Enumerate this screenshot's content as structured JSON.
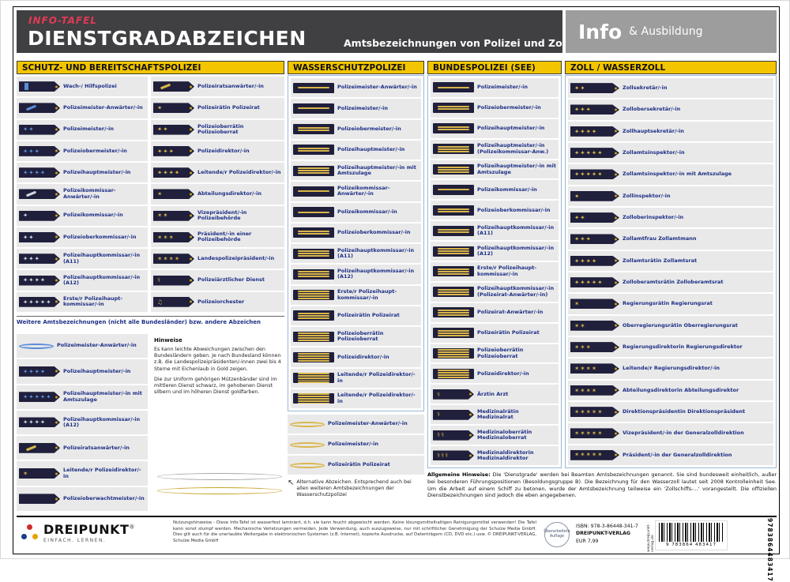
{
  "header": {
    "kicker": "INFO-TAFEL",
    "title": "DIENSTGRADABZEICHEN",
    "subtitle": "Amtsbezeichnungen von Polizei und Zoll",
    "badge_main": "Info",
    "badge_sub": "& Ausbildung"
  },
  "colors": {
    "accent_yellow": "#f2c500",
    "header_dark": "#404043",
    "badge_gray": "#9d9d9d",
    "kicker_red": "#e23a55",
    "label_blue": "#1d2f86",
    "epaulette_navy": "#20203c",
    "pip_gold": "#d9b64a",
    "pip_silver": "#cfd6e2",
    "pip_blue": "#5b8dd9"
  },
  "sections": {
    "schutzpolizei": {
      "title": "SCHUTZ- UND BEREITSCHAFTSPOLIZEI",
      "rows_left": [
        {
          "label": "Wach-/ Hilfs­polizei",
          "ins": {
            "k": "bar",
            "c": "blue"
          }
        },
        {
          "label": "Polizeimeister-Anwärter/-in",
          "ins": {
            "k": "stripe",
            "c": "blue"
          }
        },
        {
          "label": "Polizeimeister/-in",
          "ins": {
            "k": "star",
            "n": 2,
            "c": "blue"
          }
        },
        {
          "label": "Polizeiober­meister/-in",
          "ins": {
            "k": "star",
            "n": 3,
            "c": "blue"
          }
        },
        {
          "label": "Polizeihaupt­meister/-in",
          "ins": {
            "k": "star",
            "n": 4,
            "c": "blue"
          }
        },
        {
          "label": "Polizeikommissar-Anwärter/-in",
          "ins": {
            "k": "stripe",
            "c": "silver"
          }
        },
        {
          "label": "Polizei­kommissar/-in",
          "ins": {
            "k": "star",
            "n": 1,
            "c": "silver"
          }
        },
        {
          "label": "Polizeioberkom­missar/-in",
          "ins": {
            "k": "star",
            "n": 2,
            "c": "silver"
          }
        },
        {
          "label": "Polizeihauptkom­missar/-in (A11)",
          "ins": {
            "k": "star",
            "n": 3,
            "c": "silver"
          }
        },
        {
          "label": "Polizeihauptkom­missar/-in (A12)",
          "ins": {
            "k": "star",
            "n": 4,
            "c": "silver"
          }
        },
        {
          "label": "Erste/r Polizeihaupt­kommissar/-in",
          "ins": {
            "k": "star",
            "n": 5,
            "c": "silver"
          }
        }
      ],
      "rows_right": [
        {
          "label": "Polizeirats­anwärter/-in",
          "ins": {
            "k": "stripe",
            "c": "gold"
          }
        },
        {
          "label": "Polizeirätin Polizeirat",
          "ins": {
            "k": "star",
            "n": 1,
            "c": "gold"
          }
        },
        {
          "label": "Polizeioberrätin Polizeioberrat",
          "ins": {
            "k": "star",
            "n": 2,
            "c": "gold"
          }
        },
        {
          "label": "Polizei­direktor/-in",
          "ins": {
            "k": "star",
            "n": 3,
            "c": "gold"
          }
        },
        {
          "label": "Leitende/r Polizei­direktor/-in",
          "ins": {
            "k": "star",
            "n": 4,
            "c": "gold"
          }
        },
        {
          "label": "Abteilungs­direktor/-in",
          "ins": {
            "k": "oak",
            "n": 1,
            "c": "gold"
          }
        },
        {
          "label": "Vizepräsident/-in Polizeibehörde",
          "ins": {
            "k": "oak",
            "n": 2,
            "c": "gold"
          }
        },
        {
          "label": "Präsident/-in einer Polizeibehörde",
          "ins": {
            "k": "oak",
            "n": 3,
            "c": "gold"
          }
        },
        {
          "label": "Landespolizei­präsident/-in",
          "ins": {
            "k": "oak",
            "n": 4,
            "c": "gold"
          }
        },
        {
          "label": "Polizeiärztlicher Dienst",
          "ins": {
            "k": "med",
            "n": 1,
            "c": "gold"
          }
        },
        {
          "label": "Polizeiorchester",
          "ins": {
            "k": "lyre",
            "n": 1,
            "c": "gold"
          }
        }
      ],
      "divider_note": "Weitere Amtsbezeichnungen (nicht alle Bundesländer) bzw. andere Abzeichen",
      "rows_extra": [
        {
          "label": "Polizeimeister-Anwärter/-in",
          "ins": {
            "k": "cord",
            "c": "blue"
          }
        },
        {
          "label": "Polizeihaupt­meister/-in",
          "ins": {
            "k": "star",
            "n": 4,
            "c": "blue"
          }
        },
        {
          "label": "Polizeihauptmeister/-in mit Amtszulage",
          "ins": {
            "k": "star",
            "n": 5,
            "c": "blue"
          }
        },
        {
          "label": "Polizeihauptkom­missar/-in (A12)",
          "ins": {
            "k": "star",
            "n": 4,
            "c": "silver"
          }
        },
        {
          "label": "Polizeirats­anwärter/-in",
          "ins": {
            "k": "stripe",
            "c": "gold"
          }
        },
        {
          "label": "Leitende/r Polizei­direktor/-in",
          "ins": {
            "k": "oak",
            "n": 1,
            "c": "gold"
          }
        },
        {
          "label": "Polizeiober­wachtmeister/-in",
          "ins": {
            "k": "plain",
            "c": "blue"
          }
        }
      ],
      "hints_title": "Hinweise",
      "hints": [
        "Es kann leichte Abweichungen zwischen den Bundesländern geben. Je nach Bundesland können z.B. die Landespolizeipräsidenten/-innen zwei bis 4 Sterne mit Eichenlaub in Gold zeigen.",
        "Die zur Uniform gehörigen Mützenbänder sind im mittleren Dienst schwarz, im gehobenen Dienst silbern und im höheren Dienst goldfarben."
      ]
    },
    "wasserschutz": {
      "title": "WASSERSCHUTZPOLIZEI",
      "rows": [
        {
          "label": "Polizeimeister-Anwärter/-in",
          "ins": {
            "k": "stripes",
            "n": 1,
            "c": "gold"
          }
        },
        {
          "label": "Polizeimeister/-in",
          "ins": {
            "k": "stripes",
            "n": 1,
            "c": "gold"
          }
        },
        {
          "label": "Polizeiober­meister/-in",
          "ins": {
            "k": "stripes",
            "n": 2,
            "c": "gold"
          }
        },
        {
          "label": "Polizeihaupt­meister/-in",
          "ins": {
            "k": "stripes",
            "n": 2,
            "c": "gold"
          }
        },
        {
          "label": "Polizeihauptmeister/-in mit Amtszulage",
          "ins": {
            "k": "stripes",
            "n": 3,
            "c": "gold"
          }
        },
        {
          "label": "Polizeikommissar-Anwärter/-in",
          "ins": {
            "k": "stripes",
            "n": 1,
            "c": "gold"
          }
        },
        {
          "label": "Polizeikom­missar/-in",
          "ins": {
            "k": "stripes",
            "n": 1,
            "c": "gold"
          }
        },
        {
          "label": "Polizeiober­kommissar/-in",
          "ins": {
            "k": "stripes",
            "n": 2,
            "c": "gold"
          }
        },
        {
          "label": "Polizeihauptkom­missar/-in (A11)",
          "ins": {
            "k": "stripes",
            "n": 3,
            "c": "gold"
          }
        },
        {
          "label": "Polizeihauptkom­missar/-in (A12)",
          "ins": {
            "k": "stripes",
            "n": 3,
            "c": "gold"
          }
        },
        {
          "label": "Erste/r Polizeihaupt­kommissar/-in",
          "ins": {
            "k": "stripes",
            "n": 4,
            "c": "gold"
          }
        },
        {
          "label": "Polizeirätin Polizeirat",
          "ins": {
            "k": "stripes",
            "n": 3,
            "c": "gold"
          }
        },
        {
          "label": "Polizeioberrätin Polizeioberrat",
          "ins": {
            "k": "stripes",
            "n": 4,
            "c": "gold"
          }
        },
        {
          "label": "Polizeidirektor/-in",
          "ins": {
            "k": "stripes",
            "n": 4,
            "c": "gold"
          }
        },
        {
          "label": "Leitende/r Polizei­direktor/-in",
          "ins": {
            "k": "stripes",
            "n": 5,
            "c": "gold"
          }
        },
        {
          "label": "Leitende/r Polizei­direktor/-in",
          "ins": {
            "k": "stripes",
            "n": 5,
            "c": "gold"
          }
        }
      ],
      "rows_alt": [
        {
          "label": "Polizeimeister-Anwärter/-in",
          "ins": {
            "k": "cord",
            "c": "gold"
          }
        },
        {
          "label": "Polizeimeister/-in",
          "ins": {
            "k": "cord",
            "c": "gold"
          }
        },
        {
          "label": "Polizeirätin Polizeirat",
          "ins": {
            "k": "cord",
            "c": "gold"
          }
        }
      ],
      "alt_note": "Alternative Abzeichen. Entsprechend auch bei allen weiteren Amtsbezeichnungen der Wasserschutzpolizei"
    },
    "bundespolizei": {
      "title": "BUNDESPOLIZEI (SEE)",
      "rows": [
        {
          "label": "Polizeimeister/-in",
          "ins": {
            "k": "stripes",
            "n": 1,
            "c": "gold"
          }
        },
        {
          "label": "Polizeiober­meister/-in",
          "ins": {
            "k": "stripes",
            "n": 2,
            "c": "gold"
          }
        },
        {
          "label": "Polizeihaupt­meister/-in",
          "ins": {
            "k": "stripes",
            "n": 2,
            "c": "gold"
          }
        },
        {
          "label": "Polizeihauptmeister/-in (Polizeikommissar-Anw.)",
          "ins": {
            "k": "stripes",
            "n": 3,
            "c": "gold"
          }
        },
        {
          "label": "Polizeihauptmeister/-in mit Amtszulage",
          "ins": {
            "k": "stripes",
            "n": 3,
            "c": "gold"
          }
        },
        {
          "label": "Polizeikom­missar/-in",
          "ins": {
            "k": "stripes",
            "n": 1,
            "c": "gold"
          }
        },
        {
          "label": "Polizeiober­kommissar/-in",
          "ins": {
            "k": "stripes",
            "n": 2,
            "c": "gold"
          }
        },
        {
          "label": "Polizeihauptkom­missar/-in (A11)",
          "ins": {
            "k": "stripes",
            "n": 2,
            "c": "gold"
          }
        },
        {
          "label": "Polizeihauptkom­missar/-in (A12)",
          "ins": {
            "k": "stripes",
            "n": 3,
            "c": "gold"
          }
        },
        {
          "label": "Erste/r Polizeihaupt­kommissar/-in",
          "ins": {
            "k": "stripes",
            "n": 3,
            "c": "gold"
          }
        },
        {
          "label": "Polizeihauptkom­missar/-in (Polizeirat-Anwärter/-in)",
          "ins": {
            "k": "stripes",
            "n": 3,
            "c": "gold"
          }
        },
        {
          "label": "Polizeirat-Anwärter/-in",
          "ins": {
            "k": "stripes",
            "n": 3,
            "c": "gold"
          }
        },
        {
          "label": "Polizeirätin Polizeirat",
          "ins": {
            "k": "stripes",
            "n": 3,
            "c": "gold"
          }
        },
        {
          "label": "Polizeioberrätin Polizeioberrat",
          "ins": {
            "k": "stripes",
            "n": 4,
            "c": "gold"
          }
        },
        {
          "label": "Polizeidirektor/-in",
          "ins": {
            "k": "stripes",
            "n": 4,
            "c": "gold"
          }
        },
        {
          "label": "Ärztin Arzt",
          "ins": {
            "k": "med",
            "n": 1,
            "c": "gold"
          }
        },
        {
          "label": "Medizinalrätin Medizinalrat",
          "ins": {
            "k": "med",
            "n": 1,
            "c": "gold"
          }
        },
        {
          "label": "Medizinaloberrätin Medizinaloberrat",
          "ins": {
            "k": "med",
            "n": 2,
            "c": "gold"
          }
        },
        {
          "label": "Medizinaldirektorin Medizinaldirektor",
          "ins": {
            "k": "med",
            "n": 3,
            "c": "gold"
          }
        }
      ]
    },
    "zoll": {
      "title": "ZOLL / WASSERZOLL",
      "rows": [
        {
          "label": "Zollsekretär/-in",
          "ins": {
            "k": "star",
            "n": 2,
            "c": "gold"
          }
        },
        {
          "label": "Zollobersekretär/-in",
          "ins": {
            "k": "star",
            "n": 3,
            "c": "gold"
          }
        },
        {
          "label": "Zollhauptsekretär/-in",
          "ins": {
            "k": "star",
            "n": 4,
            "c": "gold"
          }
        },
        {
          "label": "Zollamtsinspektor/-in",
          "ins": {
            "k": "star",
            "n": 5,
            "c": "gold"
          }
        },
        {
          "label": "Zollamtsinspektor/-in mit Amtszulage",
          "ins": {
            "k": "star",
            "n": 5,
            "c": "gold"
          }
        },
        {
          "label": "Zollinspektor/-in",
          "ins": {
            "k": "star",
            "n": 1,
            "c": "gold"
          }
        },
        {
          "label": "Zolloberinspektor/-in",
          "ins": {
            "k": "star",
            "n": 2,
            "c": "gold"
          }
        },
        {
          "label": "Zollamtfrau Zollamtmann",
          "ins": {
            "k": "star",
            "n": 3,
            "c": "gold"
          }
        },
        {
          "label": "Zollamtsrätin Zollamtsrat",
          "ins": {
            "k": "star",
            "n": 4,
            "c": "gold"
          }
        },
        {
          "label": "Zolloberamtsrätin Zolloberamtsrat",
          "ins": {
            "k": "star",
            "n": 5,
            "c": "gold"
          }
        },
        {
          "label": "Regierungsrätin Regierungsrat",
          "ins": {
            "k": "oak",
            "n": 1,
            "c": "gold"
          }
        },
        {
          "label": "Oberregierungsrätin Oberregierungsrat",
          "ins": {
            "k": "oak",
            "n": 2,
            "c": "gold"
          }
        },
        {
          "label": "Regierungsdirektorin Regierungsdirektor",
          "ins": {
            "k": "oak",
            "n": 3,
            "c": "gold"
          }
        },
        {
          "label": "Leitende/r Regierungs­direktor/-in",
          "ins": {
            "k": "oak",
            "n": 4,
            "c": "gold"
          }
        },
        {
          "label": "Abteilungsdirektorin Abteilungsdirektor",
          "ins": {
            "k": "oak",
            "n": 4,
            "c": "gold"
          }
        },
        {
          "label": "Direktionspräsidentin Direktionspräsident",
          "ins": {
            "k": "oak",
            "n": 5,
            "c": "gold"
          }
        },
        {
          "label": "Vizepräsident/-in der Generalzolldirektion",
          "ins": {
            "k": "oak",
            "n": 5,
            "c": "gold"
          }
        },
        {
          "label": "Präsident/-in der Generalzolldirektion",
          "ins": {
            "k": "oak",
            "n": 5,
            "c": "gold"
          }
        }
      ]
    }
  },
  "general_note": {
    "title": "Allgemeine Hinweise:",
    "text": "Die 'Dienstgrade' werden bei Beamten Amtsbezeichnungen genannt. Sie sind bundesweit einheitlich, außer bei besonderen Führungspositionen (Besoldungsgruppe B). Die Bezeichnung für den Wasserzoll lautet seit 2008 Kontrolleinheit See. Um die Arbeit auf einem Schiff zu betonen, wurde der Amtsbezeichnung teilweise ein 'Zollschiffs-...' vorangestellt. Die offiziellen Dienstbezeichnungen sind jedoch die eben angegebenen."
  },
  "footer": {
    "brand": "DREIPUNKT",
    "brand_reg": "®",
    "brand_tagline": "EINFACH. LERNEN.",
    "legal": "Nutzungshinweise - Diese Info-Tafel ist wasserfest laminiert, d.h. sie kann feucht abgewischt werden. Keine lösungsmittelhaltigen Reinigungsmittel verwenden! Die Tafel kann sonst stumpf werden. Mechanische Verletzungen vermeiden. Jede Verwendung, auch auszugsweise, nur mit schriftlicher Genehmigung der Schulze Media GmbH. Dies gilt auch für die unerlaubte Weitergabe in elektronischen Systemen (z.B. Internet), kopierte Ausdrucke, auf Datenträgern (CD, DVD etc.) usw. © DREIPUNKT-VERLAG, Schulze Media GmbH",
    "edition_badge": "Überarbeitete Auflage",
    "isbn": "ISBN: 978-3-86448-341-7",
    "publisher": "DREIPUNKT-VERLAG",
    "price": "EUR 7,99",
    "barcode_number": "9 783864 483417",
    "ean_vertical": "9783864483417",
    "website": "www.dreipunkt-verlag.de"
  }
}
